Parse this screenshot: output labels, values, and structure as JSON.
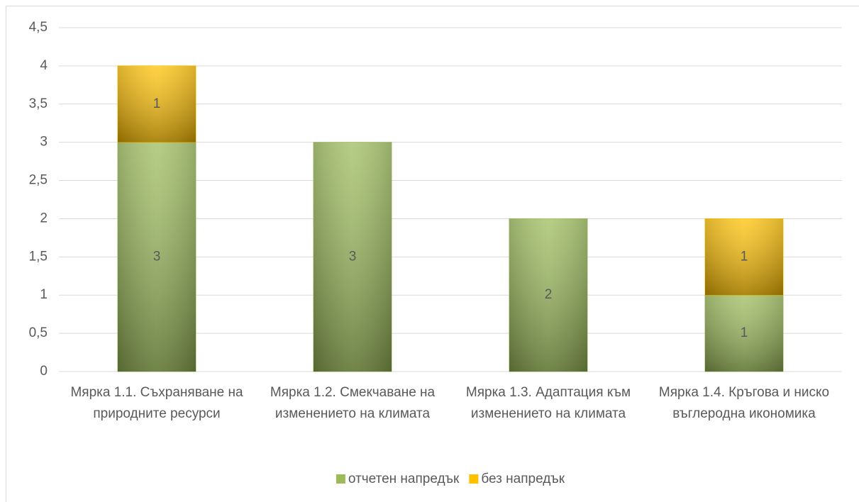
{
  "chart_data": {
    "type": "stacked_bar",
    "categories": [
      "Мярка 1.1. Съхраняване на природните ресурси",
      "Мярка 1.2. Смекчаване на изменението  на климата",
      "Мярка 1.3. Адаптация към изменението на климата",
      "Мярка 1.4. Кръгова и ниско въглеродна икономика"
    ],
    "series": [
      {
        "name": "отчетен напредък",
        "color": "#9bbb59",
        "values": [
          3,
          3,
          2,
          1
        ]
      },
      {
        "name": "без напредък",
        "color": "#ffc000",
        "values": [
          1,
          null,
          null,
          1
        ]
      }
    ],
    "ylim": [
      0,
      4.5
    ],
    "yticks": [
      0,
      {
        "value": 0.5,
        "label": "0,5"
      },
      1,
      {
        "value": 1.5,
        "label": "1,5"
      },
      2,
      {
        "value": 2.5,
        "label": "2,5"
      },
      3,
      {
        "value": 3.5,
        "label": "3,5"
      },
      4,
      {
        "value": 4.5,
        "label": "4,5"
      }
    ],
    "grid": true,
    "legend": "bottom"
  }
}
